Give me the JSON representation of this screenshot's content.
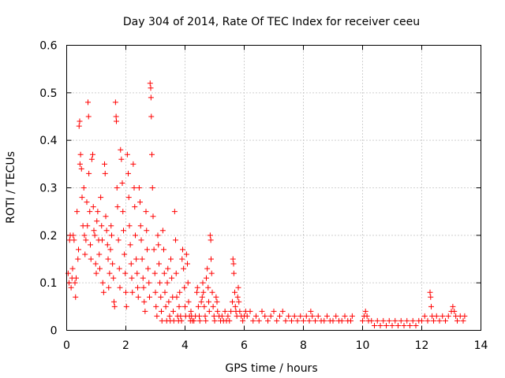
{
  "chart_data": {
    "type": "scatter",
    "title": "Day 304 of 2014, Rate Of TEC Index for receiver ceeu",
    "xlabel": "GPS time / hours",
    "ylabel": "ROTI / TECUs",
    "xlim": [
      0,
      14
    ],
    "ylim": [
      0,
      0.6
    ],
    "xticks": [
      0,
      2,
      4,
      6,
      8,
      10,
      12,
      14
    ],
    "xtick_labels": [
      "0",
      "2",
      "4",
      "6",
      "8",
      "10",
      "12",
      "14"
    ],
    "yticks": [
      0,
      0.1,
      0.2,
      0.3,
      0.4,
      0.5,
      0.6
    ],
    "ytick_labels": [
      "0",
      "0.1",
      "0.2",
      "0.3",
      "0.4",
      "0.5",
      "0.6"
    ],
    "grid": true,
    "marker": "+",
    "color": "#ff0000",
    "series": [
      {
        "name": "ROTI",
        "points": [
          [
            0.05,
            0.12
          ],
          [
            0.08,
            0.1
          ],
          [
            0.1,
            0.19
          ],
          [
            0.12,
            0.2
          ],
          [
            0.15,
            0.09
          ],
          [
            0.18,
            0.11
          ],
          [
            0.2,
            0.13
          ],
          [
            0.22,
            0.2
          ],
          [
            0.25,
            0.19
          ],
          [
            0.28,
            0.1
          ],
          [
            0.3,
            0.07
          ],
          [
            0.32,
            0.11
          ],
          [
            0.35,
            0.25
          ],
          [
            0.38,
            0.15
          ],
          [
            0.4,
            0.17
          ],
          [
            0.42,
            0.43
          ],
          [
            0.44,
            0.44
          ],
          [
            0.45,
            0.35
          ],
          [
            0.47,
            0.37
          ],
          [
            0.5,
            0.34
          ],
          [
            0.52,
            0.28
          ],
          [
            0.55,
            0.22
          ],
          [
            0.58,
            0.3
          ],
          [
            0.6,
            0.2
          ],
          [
            0.62,
            0.16
          ],
          [
            0.65,
            0.19
          ],
          [
            0.68,
            0.27
          ],
          [
            0.7,
            0.22
          ],
          [
            0.72,
            0.48
          ],
          [
            0.74,
            0.45
          ],
          [
            0.75,
            0.33
          ],
          [
            0.78,
            0.25
          ],
          [
            0.8,
            0.18
          ],
          [
            0.82,
            0.15
          ],
          [
            0.85,
            0.36
          ],
          [
            0.88,
            0.37
          ],
          [
            0.9,
            0.26
          ],
          [
            0.92,
            0.21
          ],
          [
            0.95,
            0.2
          ],
          [
            0.98,
            0.14
          ],
          [
            1.0,
            0.12
          ],
          [
            1.02,
            0.23
          ],
          [
            1.05,
            0.25
          ],
          [
            1.08,
            0.19
          ],
          [
            1.1,
            0.16
          ],
          [
            1.12,
            0.13
          ],
          [
            1.15,
            0.28
          ],
          [
            1.18,
            0.22
          ],
          [
            1.2,
            0.19
          ],
          [
            1.22,
            0.1
          ],
          [
            1.25,
            0.08
          ],
          [
            1.28,
            0.35
          ],
          [
            1.3,
            0.33
          ],
          [
            1.32,
            0.24
          ],
          [
            1.35,
            0.21
          ],
          [
            1.38,
            0.18
          ],
          [
            1.4,
            0.15
          ],
          [
            1.42,
            0.09
          ],
          [
            1.45,
            0.12
          ],
          [
            1.48,
            0.17
          ],
          [
            1.5,
            0.22
          ],
          [
            1.52,
            0.2
          ],
          [
            1.55,
            0.14
          ],
          [
            1.58,
            0.11
          ],
          [
            1.6,
            0.06
          ],
          [
            1.62,
            0.05
          ],
          [
            1.65,
            0.48
          ],
          [
            1.67,
            0.45
          ],
          [
            1.68,
            0.44
          ],
          [
            1.7,
            0.3
          ],
          [
            1.72,
            0.26
          ],
          [
            1.75,
            0.19
          ],
          [
            1.78,
            0.13
          ],
          [
            1.8,
            0.09
          ],
          [
            1.82,
            0.38
          ],
          [
            1.85,
            0.36
          ],
          [
            1.88,
            0.31
          ],
          [
            1.9,
            0.25
          ],
          [
            1.92,
            0.21
          ],
          [
            1.95,
            0.16
          ],
          [
            1.98,
            0.12
          ],
          [
            2.0,
            0.08
          ],
          [
            2.02,
            0.05
          ],
          [
            2.05,
            0.37
          ],
          [
            2.08,
            0.33
          ],
          [
            2.1,
            0.28
          ],
          [
            2.12,
            0.22
          ],
          [
            2.15,
            0.18
          ],
          [
            2.18,
            0.14
          ],
          [
            2.2,
            0.11
          ],
          [
            2.22,
            0.08
          ],
          [
            2.25,
            0.35
          ],
          [
            2.28,
            0.3
          ],
          [
            2.3,
            0.26
          ],
          [
            2.32,
            0.2
          ],
          [
            2.35,
            0.15
          ],
          [
            2.38,
            0.12
          ],
          [
            2.4,
            0.09
          ],
          [
            2.42,
            0.07
          ],
          [
            2.45,
            0.3
          ],
          [
            2.48,
            0.27
          ],
          [
            2.5,
            0.22
          ],
          [
            2.52,
            0.19
          ],
          [
            2.55,
            0.15
          ],
          [
            2.58,
            0.11
          ],
          [
            2.6,
            0.09
          ],
          [
            2.62,
            0.06
          ],
          [
            2.65,
            0.04
          ],
          [
            2.68,
            0.25
          ],
          [
            2.7,
            0.21
          ],
          [
            2.72,
            0.17
          ],
          [
            2.75,
            0.13
          ],
          [
            2.78,
            0.1
          ],
          [
            2.8,
            0.07
          ],
          [
            2.82,
            0.52
          ],
          [
            2.84,
            0.51
          ],
          [
            2.85,
            0.49
          ],
          [
            2.86,
            0.45
          ],
          [
            2.88,
            0.37
          ],
          [
            2.9,
            0.3
          ],
          [
            2.92,
            0.24
          ],
          [
            2.95,
            0.17
          ],
          [
            2.98,
            0.12
          ],
          [
            3.0,
            0.08
          ],
          [
            3.02,
            0.05
          ],
          [
            3.05,
            0.03
          ],
          [
            3.08,
            0.2
          ],
          [
            3.1,
            0.18
          ],
          [
            3.12,
            0.14
          ],
          [
            3.15,
            0.1
          ],
          [
            3.18,
            0.07
          ],
          [
            3.2,
            0.04
          ],
          [
            3.22,
            0.02
          ],
          [
            3.25,
            0.21
          ],
          [
            3.28,
            0.17
          ],
          [
            3.3,
            0.12
          ],
          [
            3.32,
            0.08
          ],
          [
            3.35,
            0.05
          ],
          [
            3.38,
            0.02
          ],
          [
            3.4,
            0.1
          ],
          [
            3.42,
            0.13
          ],
          [
            3.45,
            0.06
          ],
          [
            3.48,
            0.03
          ],
          [
            3.5,
            0.02
          ],
          [
            3.52,
            0.15
          ],
          [
            3.55,
            0.11
          ],
          [
            3.58,
            0.07
          ],
          [
            3.6,
            0.04
          ],
          [
            3.62,
            0.02
          ],
          [
            3.65,
            0.25
          ],
          [
            3.68,
            0.19
          ],
          [
            3.7,
            0.12
          ],
          [
            3.72,
            0.07
          ],
          [
            3.75,
            0.03
          ],
          [
            3.78,
            0.02
          ],
          [
            3.8,
            0.05
          ],
          [
            3.82,
            0.08
          ],
          [
            3.85,
            0.03
          ],
          [
            3.88,
            0.02
          ],
          [
            3.9,
            0.15
          ],
          [
            3.92,
            0.17
          ],
          [
            3.95,
            0.13
          ],
          [
            3.98,
            0.09
          ],
          [
            4.0,
            0.05
          ],
          [
            4.02,
            0.03
          ],
          [
            4.05,
            0.16
          ],
          [
            4.08,
            0.14
          ],
          [
            4.1,
            0.1
          ],
          [
            4.12,
            0.06
          ],
          [
            4.15,
            0.03
          ],
          [
            4.18,
            0.02
          ],
          [
            4.2,
            0.04
          ],
          [
            4.22,
            0.03
          ],
          [
            4.25,
            0.02
          ],
          [
            4.3,
            0.02
          ],
          [
            4.35,
            0.03
          ],
          [
            4.4,
            0.08
          ],
          [
            4.42,
            0.09
          ],
          [
            4.45,
            0.05
          ],
          [
            4.48,
            0.03
          ],
          [
            4.5,
            0.02
          ],
          [
            4.55,
            0.06
          ],
          [
            4.58,
            0.07
          ],
          [
            4.6,
            0.1
          ],
          [
            4.62,
            0.08
          ],
          [
            4.65,
            0.05
          ],
          [
            4.68,
            0.03
          ],
          [
            4.7,
            0.02
          ],
          [
            4.72,
            0.11
          ],
          [
            4.75,
            0.13
          ],
          [
            4.78,
            0.09
          ],
          [
            4.8,
            0.06
          ],
          [
            4.82,
            0.04
          ],
          [
            4.85,
            0.2
          ],
          [
            4.87,
            0.19
          ],
          [
            4.88,
            0.15
          ],
          [
            4.9,
            0.12
          ],
          [
            4.92,
            0.08
          ],
          [
            4.95,
            0.05
          ],
          [
            4.98,
            0.03
          ],
          [
            5.0,
            0.02
          ],
          [
            5.05,
            0.07
          ],
          [
            5.08,
            0.06
          ],
          [
            5.1,
            0.04
          ],
          [
            5.15,
            0.03
          ],
          [
            5.2,
            0.02
          ],
          [
            5.25,
            0.03
          ],
          [
            5.3,
            0.02
          ],
          [
            5.35,
            0.04
          ],
          [
            5.4,
            0.02
          ],
          [
            5.45,
            0.03
          ],
          [
            5.5,
            0.02
          ],
          [
            5.55,
            0.04
          ],
          [
            5.6,
            0.06
          ],
          [
            5.62,
            0.15
          ],
          [
            5.64,
            0.14
          ],
          [
            5.65,
            0.12
          ],
          [
            5.68,
            0.08
          ],
          [
            5.7,
            0.05
          ],
          [
            5.72,
            0.04
          ],
          [
            5.75,
            0.03
          ],
          [
            5.78,
            0.07
          ],
          [
            5.8,
            0.09
          ],
          [
            5.82,
            0.06
          ],
          [
            5.85,
            0.04
          ],
          [
            5.9,
            0.03
          ],
          [
            5.95,
            0.02
          ],
          [
            6.0,
            0.03
          ],
          [
            6.05,
            0.04
          ],
          [
            6.1,
            0.03
          ],
          [
            6.2,
            0.04
          ],
          [
            6.3,
            0.02
          ],
          [
            6.4,
            0.03
          ],
          [
            6.5,
            0.02
          ],
          [
            6.6,
            0.04
          ],
          [
            6.7,
            0.03
          ],
          [
            6.8,
            0.02
          ],
          [
            6.9,
            0.03
          ],
          [
            7.0,
            0.04
          ],
          [
            7.1,
            0.02
          ],
          [
            7.2,
            0.03
          ],
          [
            7.3,
            0.04
          ],
          [
            7.4,
            0.02
          ],
          [
            7.5,
            0.03
          ],
          [
            7.6,
            0.02
          ],
          [
            7.7,
            0.03
          ],
          [
            7.8,
            0.02
          ],
          [
            7.9,
            0.03
          ],
          [
            8.0,
            0.02
          ],
          [
            8.1,
            0.03
          ],
          [
            8.2,
            0.02
          ],
          [
            8.25,
            0.04
          ],
          [
            8.3,
            0.03
          ],
          [
            8.4,
            0.02
          ],
          [
            8.5,
            0.03
          ],
          [
            8.6,
            0.02
          ],
          [
            8.7,
            0.02
          ],
          [
            8.8,
            0.03
          ],
          [
            8.9,
            0.02
          ],
          [
            9.0,
            0.02
          ],
          [
            9.1,
            0.03
          ],
          [
            9.2,
            0.02
          ],
          [
            9.3,
            0.02
          ],
          [
            9.4,
            0.03
          ],
          [
            9.5,
            0.02
          ],
          [
            9.6,
            0.02
          ],
          [
            9.65,
            0.03
          ],
          [
            10.0,
            0.02
          ],
          [
            10.05,
            0.03
          ],
          [
            10.1,
            0.04
          ],
          [
            10.15,
            0.03
          ],
          [
            10.2,
            0.02
          ],
          [
            10.3,
            0.02
          ],
          [
            10.4,
            0.01
          ],
          [
            10.5,
            0.02
          ],
          [
            10.6,
            0.01
          ],
          [
            10.7,
            0.02
          ],
          [
            10.8,
            0.01
          ],
          [
            10.9,
            0.02
          ],
          [
            11.0,
            0.01
          ],
          [
            11.1,
            0.02
          ],
          [
            11.2,
            0.01
          ],
          [
            11.3,
            0.02
          ],
          [
            11.4,
            0.01
          ],
          [
            11.5,
            0.02
          ],
          [
            11.6,
            0.01
          ],
          [
            11.7,
            0.02
          ],
          [
            11.8,
            0.01
          ],
          [
            11.9,
            0.02
          ],
          [
            12.0,
            0.02
          ],
          [
            12.1,
            0.03
          ],
          [
            12.2,
            0.02
          ],
          [
            12.28,
            0.08
          ],
          [
            12.3,
            0.07
          ],
          [
            12.32,
            0.05
          ],
          [
            12.35,
            0.03
          ],
          [
            12.4,
            0.02
          ],
          [
            12.5,
            0.03
          ],
          [
            12.6,
            0.02
          ],
          [
            12.7,
            0.03
          ],
          [
            12.8,
            0.02
          ],
          [
            12.9,
            0.03
          ],
          [
            13.0,
            0.04
          ],
          [
            13.05,
            0.05
          ],
          [
            13.1,
            0.04
          ],
          [
            13.15,
            0.03
          ],
          [
            13.2,
            0.02
          ],
          [
            13.3,
            0.03
          ],
          [
            13.4,
            0.02
          ],
          [
            13.45,
            0.03
          ]
        ]
      }
    ]
  }
}
